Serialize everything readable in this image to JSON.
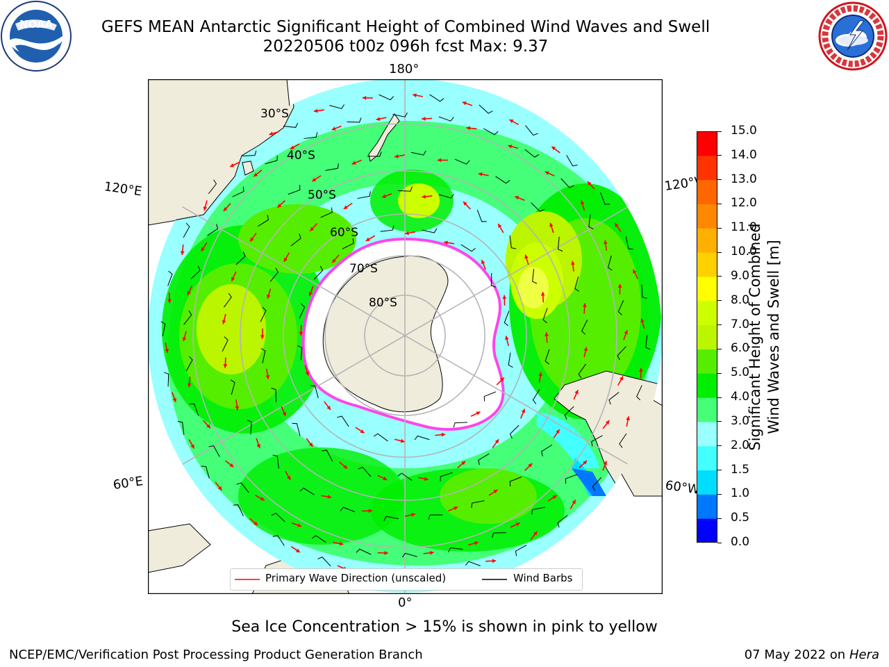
{
  "header": {
    "title_line1": "GEFS MEAN Antarctic Significant Height of Combined Wind Waves and Swell",
    "title_line2": "20220506 t00z 096h fcst   Max: 9.37"
  },
  "logos": {
    "left": {
      "icon": "noaa-logo",
      "text": "NOAA",
      "ring_text": "NATIONAL OCEANIC AND ATMOSPHERIC ADMINISTRATION · U.S. DEPARTMENT OF COMMERCE"
    },
    "right": {
      "icon": "national-weather-service-logo",
      "ring_text": "NATIONAL WEATHER SERVICE"
    }
  },
  "map": {
    "projection": "south-polar-stereographic",
    "longitude_labels": {
      "top": "180°",
      "bottom": "0°",
      "upper_left": "120°E",
      "upper_right": "120°W",
      "lower_left": "60°E",
      "lower_right": "60°W"
    },
    "latitude_labels": [
      "30°S",
      "40°S",
      "50°S",
      "60°S",
      "70°S",
      "80°S"
    ],
    "colors": {
      "land": "#efecdc",
      "ice_land": "#ffffff",
      "graticule": "#b4b4b4",
      "coastline": "#000000",
      "sea_ice": "#ff44ee",
      "arrow": "#ff0000",
      "barb": "#000000"
    },
    "max_value": 9.37
  },
  "colorbar": {
    "label_line1": "Significant Height of Combined",
    "label_line2": "Wind Waves and Swell [m]",
    "ticks": [
      "0.0",
      "0.5",
      "1.0",
      "1.5",
      "2.0",
      "3.0",
      "4.0",
      "5.0",
      "6.0",
      "7.0",
      "8.0",
      "9.0",
      "10.0",
      "11.0",
      "12.0",
      "13.0",
      "14.0",
      "15.0"
    ],
    "colors": [
      "#0000ff",
      "#0077ff",
      "#00ddff",
      "#44ffff",
      "#99ffff",
      "#44ff77",
      "#00ee00",
      "#55ee00",
      "#bbf500",
      "#ccff00",
      "#ffff00",
      "#ffd000",
      "#ffb000",
      "#ff8800",
      "#ff6600",
      "#ff3300",
      "#ff0000"
    ]
  },
  "legend": {
    "items": [
      {
        "label": "Primary Wave Direction (unscaled)",
        "color": "#ff0000"
      },
      {
        "label": "Wind Barbs",
        "color": "#000000"
      }
    ]
  },
  "footer": {
    "note": "Sea Ice Concentration > 15% is shown in pink to yellow",
    "credit": "NCEP/EMC/Verification Post Processing Product Generation Branch",
    "date": "07 May 2022 on",
    "machine": "Hera"
  }
}
